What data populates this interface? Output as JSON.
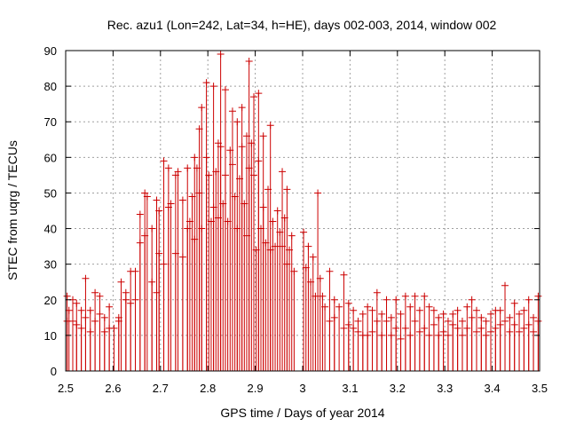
{
  "chart_data": {
    "type": "scatter",
    "title": "Rec. azu1 (Lon=242, Lat=34, h=HE), days 002-003, 2014, window 002",
    "xlabel": "GPS time / Days of year 2014",
    "ylabel": "STEC from uqrg / TECUs",
    "xlim": [
      2.5,
      3.5
    ],
    "ylim": [
      0,
      90
    ],
    "x_ticks": [
      "2.5",
      "2.6",
      "2.7",
      "2.8",
      "2.9",
      "3",
      "3.1",
      "3.2",
      "3.3",
      "3.4",
      "3.5"
    ],
    "y_ticks": [
      "0",
      "10",
      "20",
      "30",
      "40",
      "50",
      "60",
      "70",
      "80",
      "90"
    ],
    "grid": true,
    "legend": "none",
    "series_color": "#cc0000",
    "error_bars": "vertical bars from 0 to each value",
    "points": [
      [
        2.503,
        21
      ],
      [
        2.503,
        14
      ],
      [
        2.507,
        17
      ],
      [
        2.515,
        20
      ],
      [
        2.515,
        14
      ],
      [
        2.523,
        19
      ],
      [
        2.523,
        13
      ],
      [
        2.533,
        17
      ],
      [
        2.533,
        12
      ],
      [
        2.542,
        26
      ],
      [
        2.542,
        15
      ],
      [
        2.552,
        17
      ],
      [
        2.552,
        11
      ],
      [
        2.562,
        22
      ],
      [
        2.562,
        14
      ],
      [
        2.572,
        21
      ],
      [
        2.572,
        16
      ],
      [
        2.582,
        15
      ],
      [
        2.582,
        11
      ],
      [
        2.592,
        18
      ],
      [
        2.592,
        12
      ],
      [
        2.602,
        12
      ],
      [
        2.612,
        15
      ],
      [
        2.612,
        14
      ],
      [
        2.617,
        25
      ],
      [
        2.627,
        22
      ],
      [
        2.627,
        20
      ],
      [
        2.637,
        28
      ],
      [
        2.637,
        19
      ],
      [
        2.647,
        28
      ],
      [
        2.647,
        20
      ],
      [
        2.657,
        44
      ],
      [
        2.657,
        36
      ],
      [
        2.667,
        50
      ],
      [
        2.667,
        38
      ],
      [
        2.672,
        49
      ],
      [
        2.682,
        40
      ],
      [
        2.682,
        25
      ],
      [
        2.692,
        48
      ],
      [
        2.692,
        22
      ],
      [
        2.697,
        45
      ],
      [
        2.697,
        33
      ],
      [
        2.707,
        59
      ],
      [
        2.707,
        30
      ],
      [
        2.717,
        57
      ],
      [
        2.717,
        46
      ],
      [
        2.722,
        47
      ],
      [
        2.732,
        55
      ],
      [
        2.732,
        33
      ],
      [
        2.737,
        56
      ],
      [
        2.747,
        48
      ],
      [
        2.747,
        32
      ],
      [
        2.757,
        57
      ],
      [
        2.757,
        40
      ],
      [
        2.762,
        42
      ],
      [
        2.767,
        49
      ],
      [
        2.772,
        60
      ],
      [
        2.772,
        37
      ],
      [
        2.777,
        57
      ],
      [
        2.782,
        68
      ],
      [
        2.782,
        50
      ],
      [
        2.787,
        74
      ],
      [
        2.787,
        40
      ],
      [
        2.797,
        81
      ],
      [
        2.797,
        60
      ],
      [
        2.802,
        55
      ],
      [
        2.807,
        42
      ],
      [
        2.812,
        80
      ],
      [
        2.812,
        46
      ],
      [
        2.817,
        56
      ],
      [
        2.822,
        64
      ],
      [
        2.822,
        43
      ],
      [
        2.827,
        89
      ],
      [
        2.827,
        63
      ],
      [
        2.832,
        47
      ],
      [
        2.837,
        79
      ],
      [
        2.837,
        55
      ],
      [
        2.842,
        42
      ],
      [
        2.847,
        62
      ],
      [
        2.852,
        73
      ],
      [
        2.852,
        58
      ],
      [
        2.857,
        49
      ],
      [
        2.862,
        70
      ],
      [
        2.862,
        40
      ],
      [
        2.867,
        54
      ],
      [
        2.872,
        74
      ],
      [
        2.872,
        63
      ],
      [
        2.877,
        47
      ],
      [
        2.882,
        66
      ],
      [
        2.882,
        38
      ],
      [
        2.887,
        87
      ],
      [
        2.887,
        57
      ],
      [
        2.892,
        64
      ],
      [
        2.897,
        77
      ],
      [
        2.897,
        55
      ],
      [
        2.902,
        34
      ],
      [
        2.907,
        78
      ],
      [
        2.907,
        59
      ],
      [
        2.912,
        40
      ],
      [
        2.917,
        66
      ],
      [
        2.917,
        46
      ],
      [
        2.922,
        36
      ],
      [
        2.927,
        51
      ],
      [
        2.932,
        69
      ],
      [
        2.932,
        34
      ],
      [
        2.937,
        42
      ],
      [
        2.942,
        35
      ],
      [
        2.947,
        45
      ],
      [
        2.952,
        39
      ],
      [
        2.957,
        56
      ],
      [
        2.957,
        35
      ],
      [
        2.962,
        43
      ],
      [
        2.967,
        51
      ],
      [
        2.967,
        30
      ],
      [
        2.972,
        34
      ],
      [
        2.977,
        38
      ],
      [
        2.982,
        28
      ],
      [
        3.002,
        39
      ],
      [
        3.007,
        29
      ],
      [
        3.012,
        35
      ],
      [
        3.017,
        25
      ],
      [
        3.022,
        32
      ],
      [
        3.027,
        21
      ],
      [
        3.032,
        50
      ],
      [
        3.037,
        26
      ],
      [
        3.042,
        21
      ],
      [
        3.047,
        18
      ],
      [
        3.057,
        28
      ],
      [
        3.057,
        14
      ],
      [
        3.067,
        20
      ],
      [
        3.067,
        15
      ],
      [
        3.077,
        18
      ],
      [
        3.087,
        27
      ],
      [
        3.087,
        12
      ],
      [
        3.097,
        19
      ],
      [
        3.097,
        13
      ],
      [
        3.107,
        17
      ],
      [
        3.107,
        12
      ],
      [
        3.117,
        14
      ],
      [
        3.117,
        11
      ],
      [
        3.127,
        16
      ],
      [
        3.127,
        10
      ],
      [
        3.137,
        18
      ],
      [
        3.137,
        10
      ],
      [
        3.147,
        17
      ],
      [
        3.147,
        11
      ],
      [
        3.157,
        22
      ],
      [
        3.157,
        14
      ],
      [
        3.167,
        16
      ],
      [
        3.167,
        10
      ],
      [
        3.177,
        20
      ],
      [
        3.177,
        14
      ],
      [
        3.187,
        15
      ],
      [
        3.187,
        10
      ],
      [
        3.197,
        20
      ],
      [
        3.197,
        12
      ],
      [
        3.207,
        16
      ],
      [
        3.207,
        9
      ],
      [
        3.217,
        21
      ],
      [
        3.217,
        12
      ],
      [
        3.227,
        18
      ],
      [
        3.227,
        10
      ],
      [
        3.237,
        21
      ],
      [
        3.237,
        14
      ],
      [
        3.247,
        17
      ],
      [
        3.247,
        11
      ],
      [
        3.257,
        21
      ],
      [
        3.257,
        12
      ],
      [
        3.267,
        18
      ],
      [
        3.267,
        10
      ],
      [
        3.277,
        17
      ],
      [
        3.277,
        13
      ],
      [
        3.287,
        15
      ],
      [
        3.287,
        10
      ],
      [
        3.297,
        16
      ],
      [
        3.297,
        11
      ],
      [
        3.307,
        14
      ],
      [
        3.307,
        10
      ],
      [
        3.317,
        16
      ],
      [
        3.317,
        13
      ],
      [
        3.327,
        17
      ],
      [
        3.327,
        12
      ],
      [
        3.337,
        14
      ],
      [
        3.337,
        10
      ],
      [
        3.347,
        18
      ],
      [
        3.347,
        12
      ],
      [
        3.357,
        20
      ],
      [
        3.357,
        15
      ],
      [
        3.367,
        17
      ],
      [
        3.367,
        11
      ],
      [
        3.377,
        15
      ],
      [
        3.377,
        12
      ],
      [
        3.387,
        14
      ],
      [
        3.387,
        10
      ],
      [
        3.397,
        16
      ],
      [
        3.397,
        11
      ],
      [
        3.407,
        17
      ],
      [
        3.407,
        12
      ],
      [
        3.417,
        17
      ],
      [
        3.417,
        13
      ],
      [
        3.427,
        24
      ],
      [
        3.427,
        14
      ],
      [
        3.437,
        15
      ],
      [
        3.437,
        11
      ],
      [
        3.447,
        19
      ],
      [
        3.447,
        13
      ],
      [
        3.457,
        16
      ],
      [
        3.457,
        11
      ],
      [
        3.467,
        17
      ],
      [
        3.467,
        12
      ],
      [
        3.477,
        20
      ],
      [
        3.477,
        13
      ],
      [
        3.487,
        15
      ],
      [
        3.487,
        11
      ],
      [
        3.497,
        21
      ],
      [
        3.497,
        14
      ]
    ]
  }
}
